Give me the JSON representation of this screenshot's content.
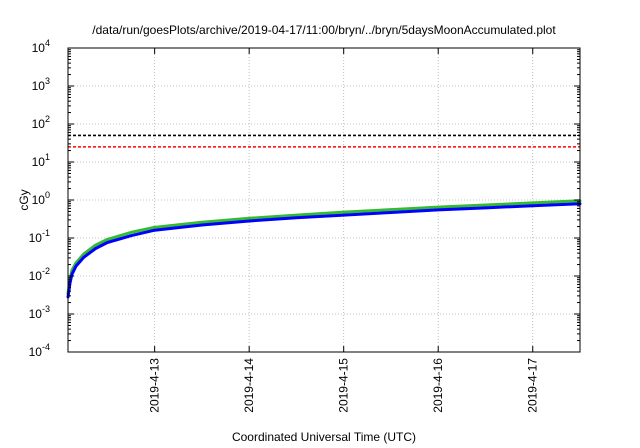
{
  "chart_data": {
    "type": "line",
    "title": "/data/run/goesPlots/archive/2019-04-17/11:00/bryn/../bryn/5daysMoonAccumulated.plot",
    "xlabel": "Coordinated Universal Time (UTC)",
    "ylabel": "cGy",
    "y_scale": "log",
    "grid": true,
    "legend": "none",
    "x_range": [
      "2019-04-12T02:00",
      "2019-04-17T12:00"
    ],
    "ylim": [
      0.0001,
      10000
    ],
    "x_ticks": [
      "2019-4-13",
      "2019-4-14",
      "2019-4-15",
      "2019-4-16",
      "2019-4-17"
    ],
    "y_ticks": [
      {
        "base": "10",
        "exp": "-4",
        "value": 0.0001
      },
      {
        "base": "10",
        "exp": "-3",
        "value": 0.001
      },
      {
        "base": "10",
        "exp": "-2",
        "value": 0.01
      },
      {
        "base": "10",
        "exp": "-1",
        "value": 0.1
      },
      {
        "base": "10",
        "exp": "0",
        "value": 1
      },
      {
        "base": "10",
        "exp": "1",
        "value": 10
      },
      {
        "base": "10",
        "exp": "2",
        "value": 100
      },
      {
        "base": "10",
        "exp": "3",
        "value": 1000
      },
      {
        "base": "10",
        "exp": "4",
        "value": 10000
      }
    ],
    "reference_lines": [
      {
        "value": 50,
        "color": "#000000",
        "style": "dashed"
      },
      {
        "value": 25,
        "color": "#ff0000",
        "style": "dashed"
      }
    ],
    "series": [
      {
        "color": "#33bb33",
        "x": [
          "2019-04-12T02:00",
          "2019-04-12T02:30",
          "2019-04-12T03:00",
          "2019-04-12T04:00",
          "2019-04-12T06:00",
          "2019-04-12T09:00",
          "2019-04-12T12:00",
          "2019-04-12T18:00",
          "2019-04-13T00:00",
          "2019-04-13T12:00",
          "2019-04-14T00:00",
          "2019-04-14T12:00",
          "2019-04-15T00:00",
          "2019-04-15T12:00",
          "2019-04-16T00:00",
          "2019-04-16T12:00",
          "2019-04-17T00:00",
          "2019-04-17T12:00"
        ],
        "y": [
          0.0035,
          0.008,
          0.014,
          0.022,
          0.038,
          0.065,
          0.092,
          0.14,
          0.19,
          0.26,
          0.33,
          0.4,
          0.48,
          0.56,
          0.65,
          0.74,
          0.84,
          0.95
        ]
      },
      {
        "color": "#0000ff",
        "x": [
          "2019-04-12T02:00",
          "2019-04-12T02:30",
          "2019-04-12T03:00",
          "2019-04-12T04:00",
          "2019-04-12T06:00",
          "2019-04-12T09:00",
          "2019-04-12T12:00",
          "2019-04-12T18:00",
          "2019-04-13T00:00",
          "2019-04-13T12:00",
          "2019-04-14T00:00",
          "2019-04-14T12:00",
          "2019-04-15T00:00",
          "2019-04-15T12:00",
          "2019-04-16T00:00",
          "2019-04-16T12:00",
          "2019-04-17T00:00",
          "2019-04-17T12:00"
        ],
        "y": [
          0.0028,
          0.0065,
          0.011,
          0.018,
          0.031,
          0.053,
          0.076,
          0.115,
          0.16,
          0.22,
          0.28,
          0.34,
          0.4,
          0.47,
          0.55,
          0.62,
          0.71,
          0.8
        ]
      }
    ]
  }
}
